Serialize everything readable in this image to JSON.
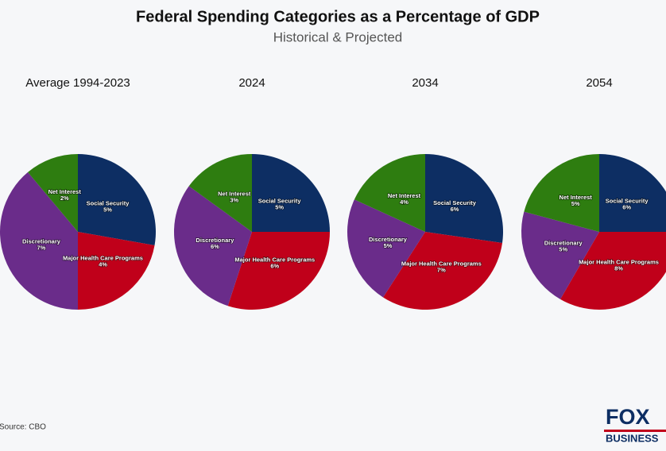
{
  "title": "Federal Spending Categories as a Percentage of GDP",
  "subtitle": "Historical & Projected",
  "source": "Source: CBO",
  "logo": {
    "top": "FOX",
    "bottom": "BUSINESS"
  },
  "chart_data": [
    {
      "type": "pie",
      "title": "Average 1994-2023",
      "categories": [
        "Social Security",
        "Major Health Care Programs",
        "Discretionary",
        "Net Interest"
      ],
      "values": [
        5,
        4,
        7,
        2
      ],
      "value_labels": [
        "5%",
        "4%",
        "7%",
        "2%"
      ],
      "colors": [
        "#0d2e63",
        "#c0001a",
        "#6a2c8a",
        "#2e7d10"
      ]
    },
    {
      "type": "pie",
      "title": "2024",
      "categories": [
        "Social Security",
        "Major Health Care Programs",
        "Discretionary",
        "Net Interest"
      ],
      "values": [
        5,
        6,
        6,
        3
      ],
      "value_labels": [
        "5%",
        "6%",
        "6%",
        "3%"
      ],
      "colors": [
        "#0d2e63",
        "#c0001a",
        "#6a2c8a",
        "#2e7d10"
      ]
    },
    {
      "type": "pie",
      "title": "2034",
      "categories": [
        "Social Security",
        "Major Health Care Programs",
        "Discretionary",
        "Net Interest"
      ],
      "values": [
        6,
        7,
        5,
        4
      ],
      "value_labels": [
        "6%",
        "7%",
        "5%",
        "4%"
      ],
      "colors": [
        "#0d2e63",
        "#c0001a",
        "#6a2c8a",
        "#2e7d10"
      ]
    },
    {
      "type": "pie",
      "title": "2054",
      "categories": [
        "Social Security",
        "Major Health Care Programs",
        "Discretionary",
        "Net Interest"
      ],
      "values": [
        6,
        8,
        5,
        5
      ],
      "value_labels": [
        "6%",
        "8%",
        "5%",
        "5%"
      ],
      "colors": [
        "#0d2e63",
        "#c0001a",
        "#6a2c8a",
        "#2e7d10"
      ]
    }
  ]
}
